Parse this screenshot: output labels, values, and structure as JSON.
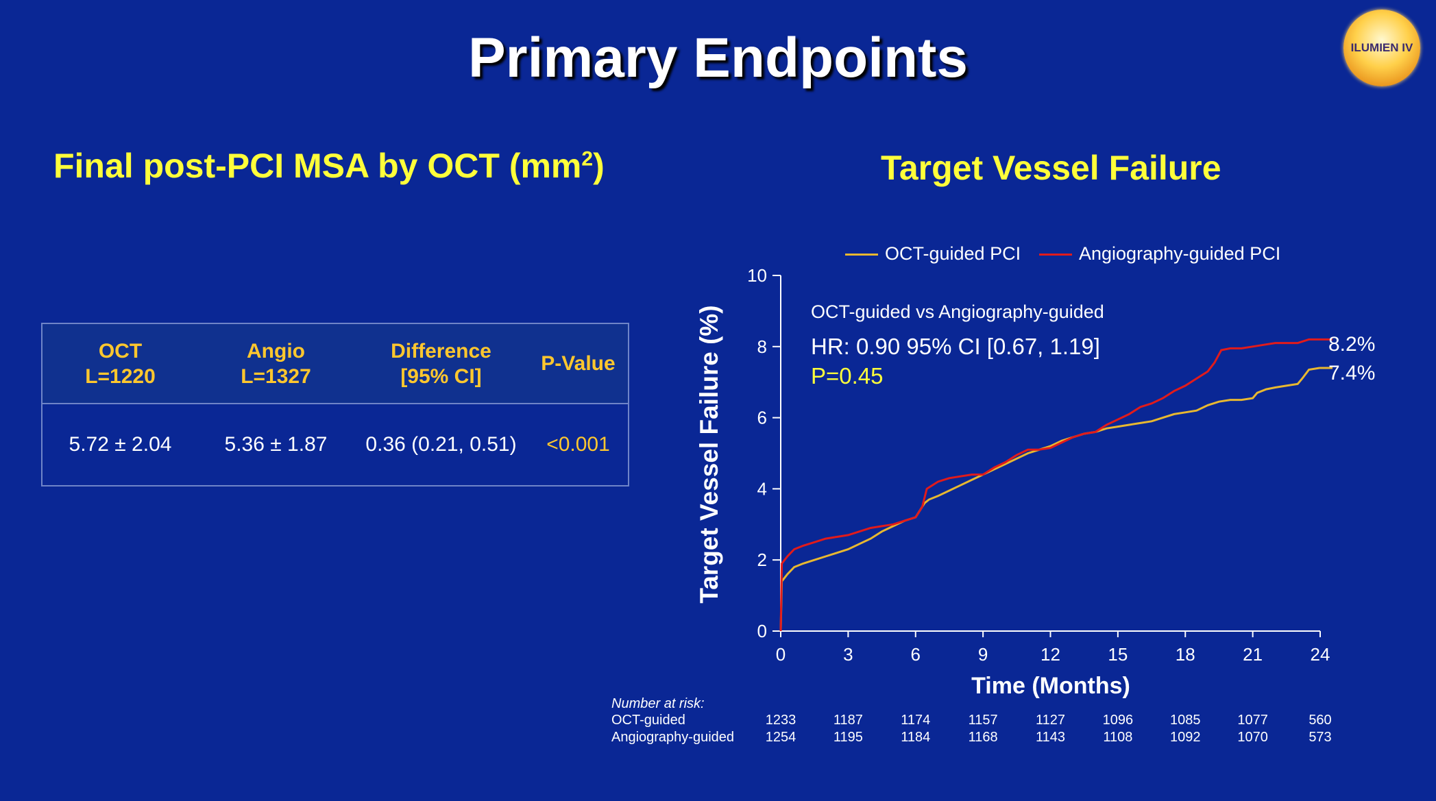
{
  "slide": {
    "title": "Primary Endpoints",
    "logo_text": "ILUMIEN IV"
  },
  "msa_section": {
    "heading": "Final post-PCI MSA by OCT (mm",
    "heading_sup": "2",
    "heading_close": ")",
    "table": {
      "headers": [
        {
          "line1": "OCT",
          "line2": "L=1220"
        },
        {
          "line1": "Angio",
          "line2": "L=1327"
        },
        {
          "line1": "Difference",
          "line2": "[95% CI]"
        },
        {
          "line1": "P-Value",
          "line2": ""
        }
      ],
      "row": [
        "5.72 ± 2.04",
        "5.36 ± 1.87",
        "0.36 (0.21, 0.51)",
        "<0.001"
      ]
    }
  },
  "tvf_section": {
    "heading": "Target Vessel Failure"
  },
  "chart_data": {
    "type": "line",
    "title": "Target Vessel Failure",
    "xlabel": "Time (Months)",
    "ylabel": "Target Vessel Failure (%)",
    "xlim": [
      0,
      24
    ],
    "ylim": [
      0,
      10
    ],
    "xticks": [
      0,
      3,
      6,
      9,
      12,
      15,
      18,
      21,
      24
    ],
    "yticks": [
      0,
      2,
      4,
      6,
      8,
      10
    ],
    "legend_position": "top",
    "series": [
      {
        "name": "OCT-guided PCI",
        "color": "#e8b830",
        "end_label": "7.4%",
        "x": [
          0,
          0.05,
          0.3,
          0.6,
          1.0,
          1.5,
          2.0,
          2.5,
          3.0,
          3.5,
          4.0,
          4.5,
          5.0,
          5.5,
          6.0,
          6.4,
          6.6,
          7.0,
          7.5,
          8.0,
          8.5,
          9.0,
          9.5,
          10.0,
          10.5,
          11.0,
          11.5,
          12.0,
          12.5,
          13.0,
          13.5,
          14.0,
          14.5,
          15.0,
          15.5,
          16.0,
          16.5,
          17.0,
          17.5,
          18.0,
          18.5,
          19.0,
          19.5,
          20.0,
          20.5,
          21.0,
          21.2,
          21.6,
          22.0,
          22.5,
          23.0,
          23.2,
          23.5,
          24.0
        ],
        "y": [
          0,
          1.4,
          1.6,
          1.8,
          1.9,
          2.0,
          2.1,
          2.2,
          2.3,
          2.45,
          2.6,
          2.8,
          2.95,
          3.1,
          3.2,
          3.6,
          3.7,
          3.8,
          3.95,
          4.1,
          4.25,
          4.4,
          4.55,
          4.7,
          4.85,
          5.0,
          5.1,
          5.2,
          5.35,
          5.45,
          5.55,
          5.6,
          5.7,
          5.75,
          5.8,
          5.85,
          5.9,
          6.0,
          6.1,
          6.15,
          6.2,
          6.35,
          6.45,
          6.5,
          6.5,
          6.55,
          6.7,
          6.8,
          6.85,
          6.9,
          6.95,
          7.1,
          7.35,
          7.4
        ]
      },
      {
        "name": "Angiography-guided PCI",
        "color": "#e11b1b",
        "end_label": "8.2%",
        "x": [
          0,
          0.05,
          0.3,
          0.6,
          1.0,
          1.5,
          2.0,
          2.5,
          3.0,
          3.5,
          4.0,
          4.5,
          5.0,
          5.5,
          6.0,
          6.3,
          6.5,
          7.0,
          7.5,
          8.0,
          8.5,
          9.0,
          9.5,
          10.0,
          10.5,
          11.0,
          11.5,
          12.0,
          12.5,
          13.0,
          13.5,
          14.0,
          14.5,
          15.0,
          15.5,
          16.0,
          16.5,
          17.0,
          17.5,
          18.0,
          18.5,
          19.0,
          19.3,
          19.6,
          20.0,
          20.5,
          21.0,
          21.5,
          22.0,
          22.5,
          23.0,
          23.5,
          24.0
        ],
        "y": [
          0,
          1.9,
          2.1,
          2.3,
          2.4,
          2.5,
          2.6,
          2.65,
          2.7,
          2.8,
          2.9,
          2.95,
          3.0,
          3.1,
          3.2,
          3.5,
          4.0,
          4.2,
          4.3,
          4.35,
          4.4,
          4.4,
          4.6,
          4.75,
          4.95,
          5.1,
          5.1,
          5.15,
          5.3,
          5.45,
          5.55,
          5.6,
          5.8,
          5.95,
          6.1,
          6.3,
          6.4,
          6.55,
          6.75,
          6.9,
          7.1,
          7.3,
          7.55,
          7.9,
          7.95,
          7.95,
          8.0,
          8.05,
          8.1,
          8.1,
          8.1,
          8.2,
          8.2
        ]
      }
    ],
    "annotation": {
      "line1": "OCT-guided vs Angiography-guided",
      "line2": "HR: 0.90 95% CI [0.67, 1.19]",
      "line3": "P=0.45"
    },
    "number_at_risk": {
      "label": "Number at risk:",
      "groups": [
        {
          "name": "OCT-guided",
          "values": [
            1233,
            1187,
            1174,
            1157,
            1127,
            1096,
            1085,
            1077,
            560
          ]
        },
        {
          "name": "Angiography-guided",
          "values": [
            1254,
            1195,
            1184,
            1168,
            1143,
            1108,
            1092,
            1070,
            573
          ]
        }
      ]
    }
  }
}
